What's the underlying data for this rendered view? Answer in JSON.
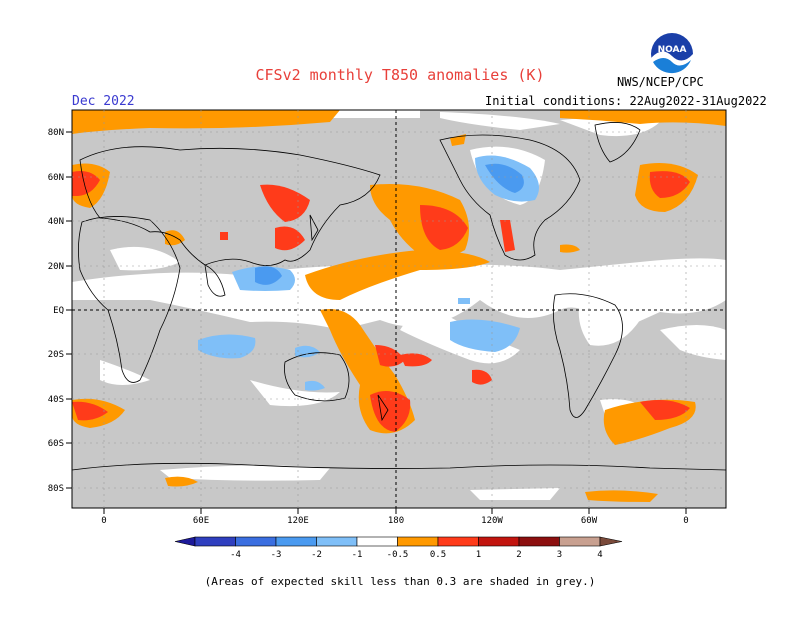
{
  "header": {
    "title": "CFSv2 monthly T850 anomalies (K)",
    "period": "Dec 2022",
    "initial_conditions": "Initial conditions: 22Aug2022-31Aug2022",
    "agency": "NWS/NCEP/CPC",
    "logo_text": "NOAA"
  },
  "map": {
    "lat_labels": [
      "80N",
      "60N",
      "40N",
      "20N",
      "EQ",
      "20S",
      "40S",
      "60S",
      "80S"
    ],
    "lon_labels": [
      "0",
      "60E",
      "120E",
      "180",
      "120W",
      "60W",
      "0"
    ]
  },
  "legend": {
    "labels": [
      "-4",
      "-3",
      "-2",
      "-1",
      "-0.5",
      "0.5",
      "1",
      "2",
      "3",
      "4"
    ],
    "colors": [
      "#1d1a9a",
      "#2f3fbf",
      "#3a6ee0",
      "#4a9af0",
      "#7fbff8",
      "#ffffff",
      "#ff9900",
      "#ff3b1a",
      "#c2140e",
      "#8c0f0f",
      "#c8a090",
      "#7a4a3a"
    ]
  },
  "colors": {
    "skill_mask": "#c8c8c8",
    "warm_light": "#ff9900",
    "warm_mid": "#ff3b1a",
    "cool_light": "#7fbff8",
    "cool_mid": "#4a9af0"
  },
  "footnote": "(Areas of expected skill less than 0.3 are shaded in grey.)"
}
